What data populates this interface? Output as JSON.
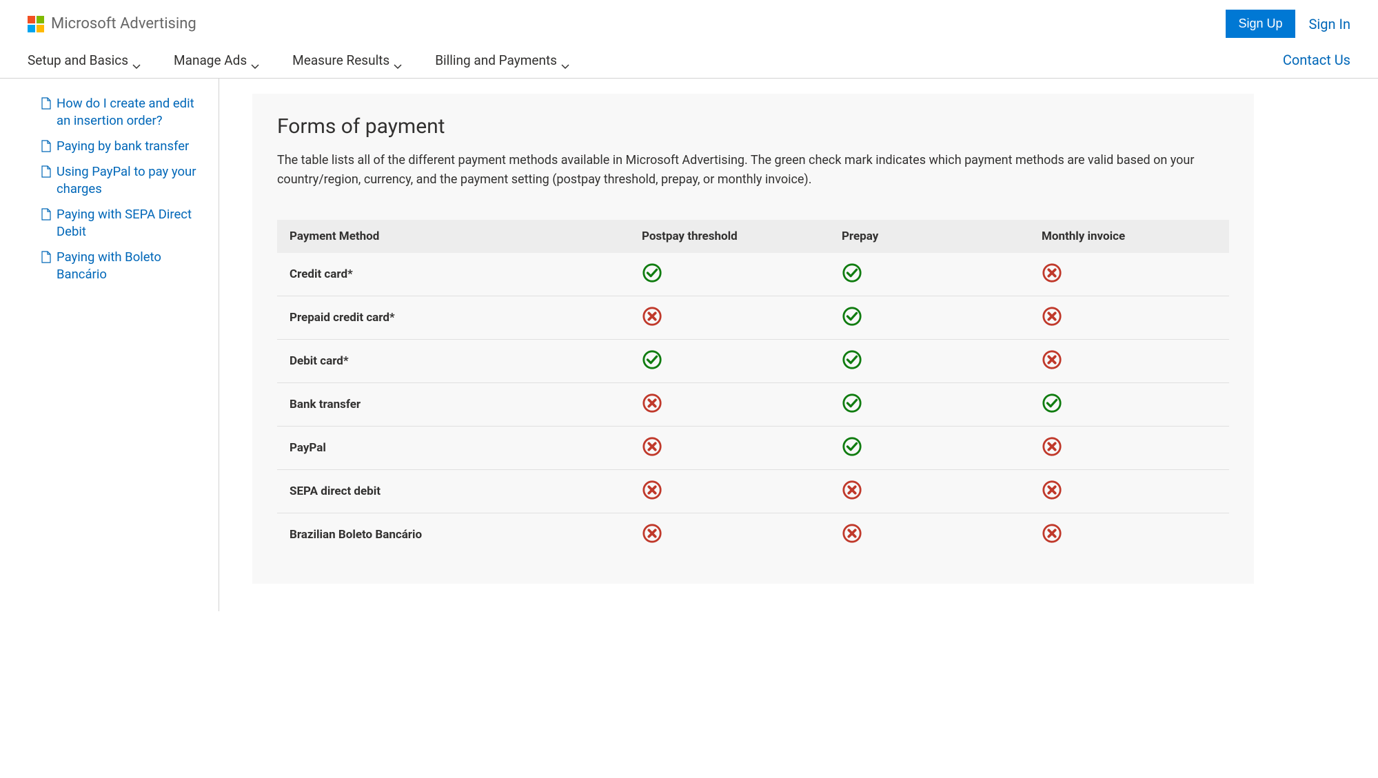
{
  "brand": "Microsoft Advertising",
  "auth": {
    "signup": "Sign Up",
    "signin": "Sign In"
  },
  "nav": {
    "items": [
      "Setup and Basics",
      "Manage Ads",
      "Measure Results",
      "Billing and Payments"
    ],
    "contact": "Contact Us"
  },
  "sidebar": {
    "items": [
      "How do I create and edit an insertion order?",
      "Paying by bank transfer",
      "Using PayPal to pay your charges",
      "Paying with SEPA Direct Debit",
      "Paying with Boleto Bancário"
    ]
  },
  "panel": {
    "title": "Forms of payment",
    "description": "The table lists all of the different payment methods available in Microsoft Advertising. The green check mark indicates which payment methods are valid based on your country/region, currency, and the payment setting (postpay threshold, prepay, or monthly invoice)."
  },
  "table": {
    "columns": [
      "Payment Method",
      "Postpay threshold",
      "Prepay",
      "Monthly invoice"
    ],
    "rows": [
      {
        "method": "Credit card*",
        "postpay": true,
        "prepay": true,
        "monthly": false
      },
      {
        "method": "Prepaid credit card*",
        "postpay": false,
        "prepay": true,
        "monthly": false
      },
      {
        "method": "Debit card*",
        "postpay": true,
        "prepay": true,
        "monthly": false
      },
      {
        "method": "Bank transfer",
        "postpay": false,
        "prepay": true,
        "monthly": true
      },
      {
        "method": "PayPal",
        "postpay": false,
        "prepay": true,
        "monthly": false
      },
      {
        "method": "SEPA direct debit",
        "postpay": false,
        "prepay": false,
        "monthly": false
      },
      {
        "method": "Brazilian Boleto Bancário",
        "postpay": false,
        "prepay": false,
        "monthly": false
      }
    ]
  },
  "colors": {
    "link": "#0067b8",
    "primary_button": "#0078d4",
    "check_green": "#107c10",
    "cross_red": "#c0392b",
    "panel_bg": "#f8f8f8",
    "table_header_bg": "#ededed",
    "border": "#d2d2d2"
  }
}
